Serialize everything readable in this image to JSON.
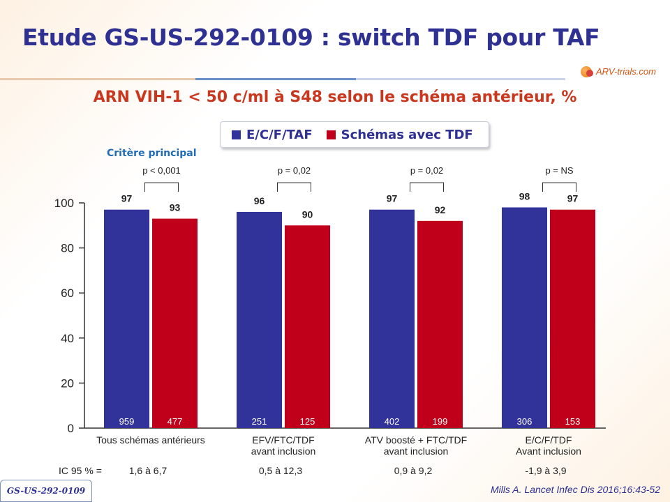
{
  "slide": {
    "title": "Etude GS-US-292-0109 : switch TDF pour TAF",
    "logo_text": "ARV-trials.com",
    "badge": "GS-US-292-0109",
    "reference": "Mills A. Lancet Infec Dis 2016;16:43-52"
  },
  "colors": {
    "series_1": "#32329b",
    "series_2": "#c0001a",
    "title": "#2e3192",
    "subtitle": "#c8371e"
  },
  "chart_data": {
    "type": "bar",
    "title": "ARN VIH-1 < 50 c/ml à S48 selon le schéma antérieur, %",
    "categories": [
      [
        "Tous schémas antérieurs"
      ],
      [
        "EFV/FTC/TDF",
        "avant inclusion"
      ],
      [
        "ATV boosté + FTC/TDF",
        "avant inclusion"
      ],
      [
        "E/C/F/TDF",
        "Avant inclusion"
      ]
    ],
    "series": [
      {
        "name": "E/C/F/TAF",
        "values": [
          97,
          96,
          97,
          98
        ],
        "n": [
          "959",
          "251",
          "402",
          "306"
        ]
      },
      {
        "name": "Schémas avec TDF",
        "values": [
          93,
          90,
          92,
          97
        ],
        "n": [
          "477",
          "125",
          "199",
          "153"
        ]
      }
    ],
    "ylim": [
      0,
      100
    ],
    "yticks": [
      "0",
      "20",
      "40",
      "60",
      "80",
      "100"
    ],
    "p_values": [
      "p < 0,001",
      "p = 0,02",
      "p = 0,02",
      "p = NS"
    ],
    "ic_label": "IC 95 % =",
    "ic_values": [
      "1,6 à 6,7",
      "0,5 à 12,3",
      "0,9 à 9,2",
      "-1,9 à 3,9"
    ],
    "annotation": "Critère principal",
    "legend_position": "top-center",
    "grid": false
  }
}
